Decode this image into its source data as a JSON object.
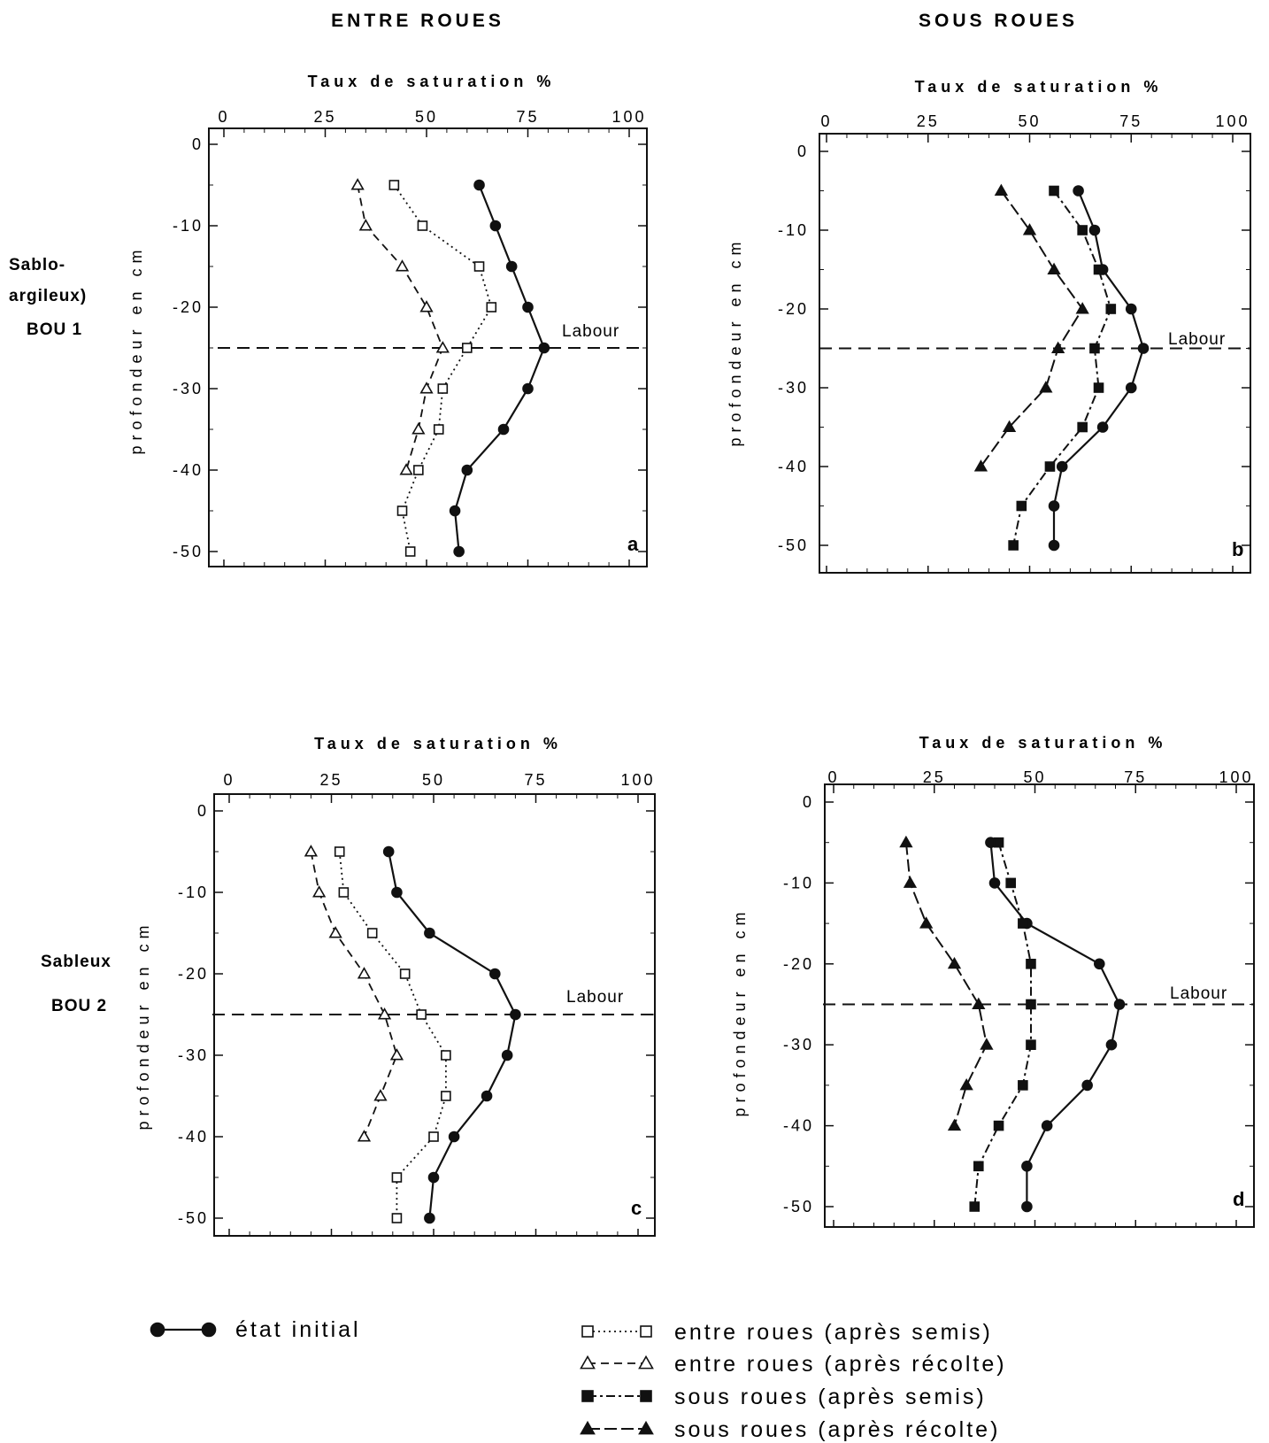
{
  "headers": {
    "left": "ENTRE ROUES",
    "right": "SOUS ROUES"
  },
  "row_labels": [
    {
      "lines": [
        "Sablo-",
        "argileux)",
        "BOU 1"
      ]
    },
    {
      "lines": [
        "Sableux",
        "BOU 2"
      ]
    }
  ],
  "chart_data": [
    {
      "type": "line",
      "panel": "a",
      "xlabel": "Taux de saturation %",
      "ylabel": "profondeur en cm",
      "xlim": [
        0,
        100
      ],
      "ylim": [
        -50,
        0
      ],
      "xticks": [
        "0",
        "25",
        "50",
        "75",
        "100"
      ],
      "yticks": [
        "0",
        "-10",
        "-20",
        "-30",
        "-40",
        "-50"
      ],
      "hline": {
        "y": -25,
        "label": "Labour"
      },
      "series": [
        {
          "key": "initial",
          "x": [
            63,
            67,
            71,
            75,
            79,
            75,
            69,
            60,
            57,
            58
          ],
          "y": [
            -5,
            -10,
            -15,
            -20,
            -25,
            -30,
            -35,
            -40,
            -45,
            -50
          ]
        },
        {
          "key": "er_semis",
          "x": [
            42,
            49,
            63,
            66,
            60,
            54,
            53,
            48,
            44,
            46
          ],
          "y": [
            -5,
            -10,
            -15,
            -20,
            -25,
            -30,
            -35,
            -40,
            -45,
            -50
          ]
        },
        {
          "key": "er_recolte",
          "x": [
            33,
            35,
            44,
            50,
            54,
            50,
            48,
            45
          ],
          "y": [
            -5,
            -10,
            -15,
            -20,
            -25,
            -30,
            -35,
            -40
          ]
        }
      ]
    },
    {
      "type": "line",
      "panel": "b",
      "xlabel": "Taux de saturation %",
      "ylabel": "profondeur en cm",
      "xlim": [
        0,
        100
      ],
      "ylim": [
        -50,
        0
      ],
      "xticks": [
        "0",
        "25",
        "50",
        "75",
        "100"
      ],
      "yticks": [
        "0",
        "-10",
        "-20",
        "-30",
        "-40",
        "-50"
      ],
      "hline": {
        "y": -25,
        "label": "Labour"
      },
      "series": [
        {
          "key": "initial",
          "x": [
            62,
            66,
            68,
            75,
            78,
            75,
            68,
            58,
            56,
            56
          ],
          "y": [
            -5,
            -10,
            -15,
            -20,
            -25,
            -30,
            -35,
            -40,
            -45,
            -50
          ]
        },
        {
          "key": "sr_semis",
          "x": [
            56,
            63,
            67,
            70,
            66,
            67,
            63,
            55,
            48,
            46
          ],
          "y": [
            -5,
            -10,
            -15,
            -20,
            -25,
            -30,
            -35,
            -40,
            -45,
            -50
          ]
        },
        {
          "key": "sr_recolte",
          "x": [
            43,
            50,
            56,
            63,
            57,
            54,
            45,
            38
          ],
          "y": [
            -5,
            -10,
            -15,
            -20,
            -25,
            -30,
            -35,
            -40
          ]
        }
      ]
    },
    {
      "type": "line",
      "panel": "c",
      "xlabel": "Taux de saturation %",
      "ylabel": "profondeur en cm",
      "xlim": [
        0,
        100
      ],
      "ylim": [
        -50,
        0
      ],
      "xticks": [
        "0",
        "25",
        "50",
        "75",
        "100"
      ],
      "yticks": [
        "0",
        "-10",
        "-20",
        "-30",
        "-40",
        "-50"
      ],
      "hline": {
        "y": -25,
        "label": "Labour"
      },
      "series": [
        {
          "key": "initial",
          "x": [
            39,
            41,
            49,
            65,
            70,
            68,
            63,
            55,
            50,
            49
          ],
          "y": [
            -5,
            -10,
            -15,
            -20,
            -25,
            -30,
            -35,
            -40,
            -45,
            -50
          ]
        },
        {
          "key": "er_semis",
          "x": [
            27,
            28,
            35,
            43,
            47,
            53,
            53,
            50,
            41,
            41
          ],
          "y": [
            -5,
            -10,
            -15,
            -20,
            -25,
            -30,
            -35,
            -40,
            -45,
            -50
          ]
        },
        {
          "key": "er_recolte",
          "x": [
            20,
            22,
            26,
            33,
            38,
            41,
            37,
            33
          ],
          "y": [
            -5,
            -10,
            -15,
            -20,
            -25,
            -30,
            -35,
            -40
          ]
        }
      ]
    },
    {
      "type": "line",
      "panel": "d",
      "xlabel": "Taux de saturation %",
      "ylabel": "profondeur en cm",
      "xlim": [
        0,
        100
      ],
      "ylim": [
        -50,
        0
      ],
      "xticks": [
        "0",
        "25",
        "50",
        "75",
        "100"
      ],
      "yticks": [
        "0",
        "-10",
        "-20",
        "-30",
        "-40",
        "-50"
      ],
      "hline": {
        "y": -25,
        "label": "Labour"
      },
      "series": [
        {
          "key": "initial",
          "x": [
            39,
            40,
            48,
            66,
            71,
            69,
            63,
            53,
            48,
            48
          ],
          "y": [
            -5,
            -10,
            -15,
            -20,
            -25,
            -30,
            -35,
            -40,
            -45,
            -50
          ]
        },
        {
          "key": "sr_semis",
          "x": [
            41,
            44,
            47,
            49,
            49,
            49,
            47,
            41,
            36,
            35
          ],
          "y": [
            -5,
            -10,
            -15,
            -20,
            -25,
            -30,
            -35,
            -40,
            -45,
            -50
          ]
        },
        {
          "key": "sr_recolte",
          "x": [
            18,
            19,
            23,
            30,
            36,
            38,
            33,
            30
          ],
          "y": [
            -5,
            -10,
            -15,
            -20,
            -25,
            -30,
            -35,
            -40
          ]
        }
      ]
    }
  ],
  "legend": {
    "initial": "état initial",
    "er_semis": "entre roues (après semis)",
    "er_recolte": "entre roues (après récolte)",
    "sr_semis": "sous roues (après semis)",
    "sr_recolte": "sous roues (après récolte)"
  }
}
